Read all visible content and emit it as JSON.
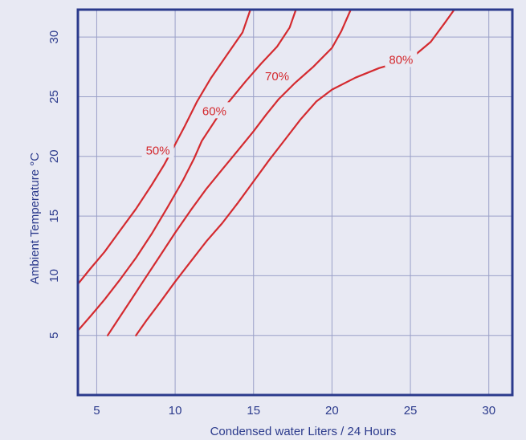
{
  "chart_data": {
    "type": "line",
    "title": "",
    "xlabel": "Condensed water Liters / 24 Hours",
    "ylabel": "Ambient Temperature °C",
    "xlim": [
      3.8,
      31.5
    ],
    "ylim": [
      0,
      32.3
    ],
    "xticks": [
      5,
      10,
      15,
      20,
      25,
      30
    ],
    "yticks": [
      5,
      10,
      15,
      20,
      25,
      30
    ],
    "xtick_labels": [
      "5",
      "10",
      "15",
      "20",
      "25",
      "30"
    ],
    "ytick_labels": [
      "5",
      "10",
      "15",
      "20",
      "25",
      "30"
    ],
    "grid": true,
    "legend": "inline labels on curves",
    "colors": {
      "background": "#e8e9f3",
      "plot_area": "#e8e9f3",
      "axis": "#2b3a8c",
      "grid": "#9aa0c8",
      "series": "#d42a2f"
    },
    "series": [
      {
        "name": "50%",
        "x": [
          3.8,
          4.6,
          5.5,
          6.5,
          7.5,
          8.5,
          9.3,
          10.0,
          10.6,
          11.4,
          12.3,
          13.3,
          14.3,
          14.8
        ],
        "y": [
          9.3,
          10.6,
          12.0,
          13.8,
          15.6,
          17.6,
          19.3,
          21.0,
          22.5,
          24.6,
          26.6,
          28.5,
          30.4,
          32.3
        ]
      },
      {
        "name": "60%",
        "x": [
          3.8,
          4.6,
          5.5,
          6.5,
          7.5,
          8.5,
          9.5,
          10.5,
          11.2,
          11.7,
          13.0,
          14.5,
          15.5,
          16.5,
          17.3,
          17.7
        ],
        "y": [
          5.4,
          6.6,
          8.0,
          9.7,
          11.5,
          13.5,
          15.7,
          18.0,
          19.8,
          21.3,
          23.9,
          26.3,
          27.8,
          29.2,
          30.8,
          32.3
        ]
      },
      {
        "name": "70%",
        "x": [
          5.7,
          6.3,
          7.0,
          8.0,
          9.0,
          10.0,
          11.0,
          12.0,
          13.0,
          14.0,
          15.0,
          15.8,
          16.6,
          17.6,
          18.8,
          20.0,
          20.6,
          21.2
        ],
        "y": [
          5.0,
          6.2,
          7.6,
          9.6,
          11.6,
          13.6,
          15.5,
          17.3,
          18.9,
          20.5,
          22.1,
          23.5,
          24.8,
          26.1,
          27.5,
          29.1,
          30.5,
          32.3
        ]
      },
      {
        "name": "80%",
        "x": [
          7.5,
          8.2,
          9.0,
          10.0,
          11.0,
          12.0,
          13.0,
          14.0,
          15.0,
          16.0,
          17.0,
          18.0,
          19.0,
          20.0,
          21.5,
          23.0,
          24.3,
          25.3,
          26.3,
          27.2,
          27.8
        ],
        "y": [
          5.0,
          6.3,
          7.7,
          9.5,
          11.2,
          12.9,
          14.4,
          16.1,
          17.9,
          19.7,
          21.4,
          23.1,
          24.6,
          25.6,
          26.6,
          27.4,
          27.9,
          28.5,
          29.6,
          31.2,
          32.3
        ]
      }
    ],
    "series_labels": [
      {
        "text": "50%",
        "x": 8.9,
        "y": 20.5
      },
      {
        "text": "60%",
        "x": 12.5,
        "y": 23.8
      },
      {
        "text": "70%",
        "x": 16.5,
        "y": 26.7
      },
      {
        "text": "80%",
        "x": 24.4,
        "y": 28.1
      }
    ]
  }
}
